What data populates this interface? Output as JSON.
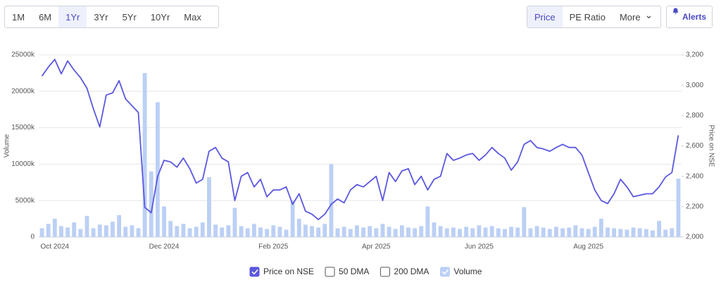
{
  "controls": {
    "ranges": [
      "1M",
      "6M",
      "1Yr",
      "3Yr",
      "5Yr",
      "10Yr",
      "Max"
    ],
    "active_range": 2,
    "views": [
      "Price",
      "PE Ratio",
      "More"
    ],
    "active_view": 0,
    "alerts": "Alerts"
  },
  "chart_data": {
    "type": "combo",
    "ylabel": "Volume",
    "y2label": "Price on NSE",
    "categories": [
      null,
      null,
      "Oct 2024",
      null,
      null,
      null,
      null,
      null,
      null,
      null,
      null,
      null,
      null,
      null,
      null,
      null,
      null,
      null,
      null,
      "Dec 2024",
      null,
      null,
      null,
      null,
      null,
      null,
      null,
      null,
      null,
      null,
      null,
      null,
      null,
      null,
      null,
      null,
      "Feb 2025",
      null,
      null,
      null,
      null,
      null,
      null,
      null,
      null,
      null,
      null,
      null,
      null,
      null,
      null,
      null,
      "Apr 2025",
      null,
      null,
      null,
      null,
      null,
      null,
      null,
      null,
      null,
      null,
      null,
      null,
      null,
      null,
      null,
      "Jun 2025",
      null,
      null,
      null,
      null,
      null,
      null,
      null,
      null,
      null,
      null,
      null,
      null,
      null,
      null,
      null,
      null,
      "Aug 2025",
      null,
      null,
      null,
      null,
      null,
      null,
      null,
      null,
      null,
      null,
      null,
      null,
      null,
      null
    ],
    "series": [
      {
        "name": "Price on NSE",
        "type": "line",
        "axis": "y2",
        "checked": true,
        "color": "#5b57e0",
        "values": [
          3060,
          3120,
          3170,
          3075,
          3160,
          3100,
          3050,
          2980,
          2845,
          2725,
          2935,
          2950,
          3030,
          2910,
          2865,
          2820,
          2195,
          2160,
          2400,
          2505,
          2495,
          2460,
          2520,
          2450,
          2355,
          2380,
          2565,
          2590,
          2520,
          2495,
          2240,
          2400,
          2425,
          2330,
          2380,
          2265,
          2310,
          2310,
          2330,
          2215,
          2285,
          2170,
          2150,
          2115,
          2150,
          2215,
          2250,
          2225,
          2310,
          2345,
          2330,
          2365,
          2400,
          2240,
          2425,
          2365,
          2435,
          2450,
          2345,
          2400,
          2310,
          2380,
          2400,
          2550,
          2505,
          2520,
          2540,
          2550,
          2505,
          2540,
          2590,
          2550,
          2520,
          2440,
          2495,
          2610,
          2635,
          2590,
          2580,
          2565,
          2590,
          2610,
          2590,
          2590,
          2540,
          2425,
          2310,
          2240,
          2220,
          2285,
          2380,
          2330,
          2265,
          2275,
          2285,
          2285,
          2330,
          2395,
          2425,
          2670
        ]
      },
      {
        "name": "Volume",
        "type": "bar",
        "checked": true,
        "color": "#bcd0f5",
        "values": [
          1200000,
          1800000,
          2500000,
          1500000,
          1300000,
          2000000,
          1100000,
          2900000,
          1200000,
          1700000,
          1600000,
          2100000,
          3000000,
          1400000,
          1600000,
          1200000,
          22500000,
          9000000,
          18500000,
          4200000,
          2200000,
          1500000,
          1800000,
          1200000,
          1400000,
          2000000,
          8200000,
          1700000,
          1300000,
          1600000,
          4000000,
          1500000,
          1200000,
          1800000,
          1300000,
          1100000,
          1600000,
          1400000,
          1000000,
          5000000,
          2500000,
          1700000,
          1500000,
          1300000,
          1800000,
          10000000,
          1200000,
          1400000,
          1100000,
          1600000,
          1300000,
          1500000,
          1200000,
          1800000,
          1400000,
          1100000,
          1600000,
          1300000,
          1200000,
          1500000,
          4200000,
          2000000,
          1500000,
          1200000,
          1300000,
          1100000,
          1400000,
          1200000,
          1600000,
          1300000,
          1500000,
          1200000,
          1100000,
          1400000,
          1300000,
          4100000,
          1200000,
          1500000,
          1300000,
          1100000,
          1400000,
          1200000,
          1300000,
          1600000,
          1200000,
          1100000,
          1400000,
          2500000,
          1300000,
          1200000,
          1100000,
          1000000,
          1300000,
          1200000,
          1100000,
          900000,
          2200000,
          1000000,
          1200000,
          8000000
        ]
      }
    ],
    "unchecked_series": [
      "50 DMA",
      "200 DMA"
    ],
    "ylim": [
      0,
      25000000
    ],
    "yticks": [
      0,
      {
        "value": 5000000,
        "label": "5000k"
      },
      {
        "value": 10000000,
        "label": "10000k"
      },
      {
        "value": 15000000,
        "label": "15000k"
      },
      {
        "value": 20000000,
        "label": "20000k"
      },
      {
        "value": 25000000,
        "label": "25000k"
      }
    ],
    "y2lim": [
      2000,
      3200
    ],
    "y2ticks": [
      {
        "value": 2000,
        "label": "2,000"
      },
      {
        "value": 2200,
        "label": "2,200"
      },
      {
        "value": 2400,
        "label": "2,400"
      },
      {
        "value": 2600,
        "label": "2,600"
      },
      {
        "value": 2800,
        "label": "2,800"
      },
      {
        "value": 3000,
        "label": "3,000"
      },
      {
        "value": 3200,
        "label": "3,200"
      }
    ],
    "grid": true
  }
}
